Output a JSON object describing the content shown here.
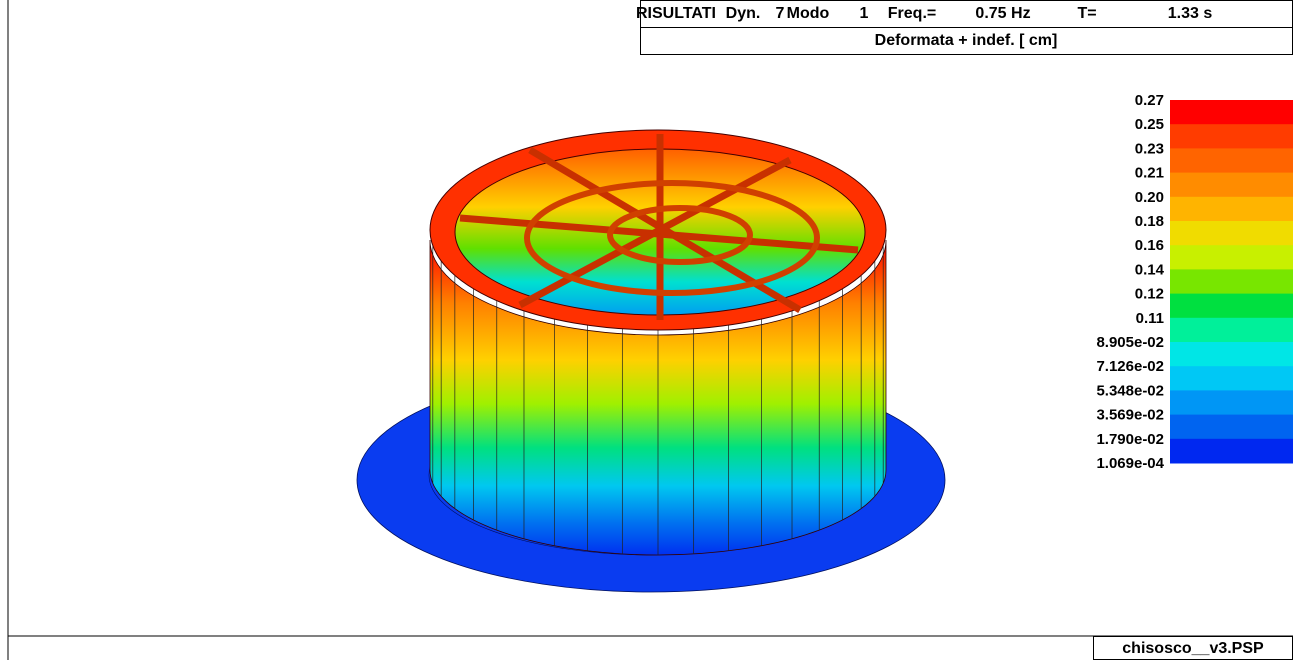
{
  "header": {
    "row1": [
      "RISULTATI",
      "Dyn.",
      "7",
      "Modo",
      "1",
      "Freq.=",
      "0.75 Hz",
      "T=",
      "1.33 s"
    ],
    "row2": "Deformata + indef.  [ cm]"
  },
  "legend": {
    "labels": [
      "0.27",
      "0.25",
      "0.23",
      "0.21",
      "0.20",
      "0.18",
      "0.16",
      "0.14",
      "0.12",
      "0.11",
      "8.905e-02",
      "7.126e-02",
      "5.348e-02",
      "3.569e-02",
      "1.790e-02",
      "1.069e-04"
    ],
    "colors": [
      "#ff0000",
      "#ff3c00",
      "#ff6400",
      "#ff8c00",
      "#ffb400",
      "#f0dc00",
      "#c8f000",
      "#78e600",
      "#00e040",
      "#00f09a",
      "#00e6e6",
      "#00c8f5",
      "#0096f5",
      "#0064f0",
      "#0028f0"
    ]
  },
  "footer": {
    "filename": "chisosco__v3.PSP"
  }
}
